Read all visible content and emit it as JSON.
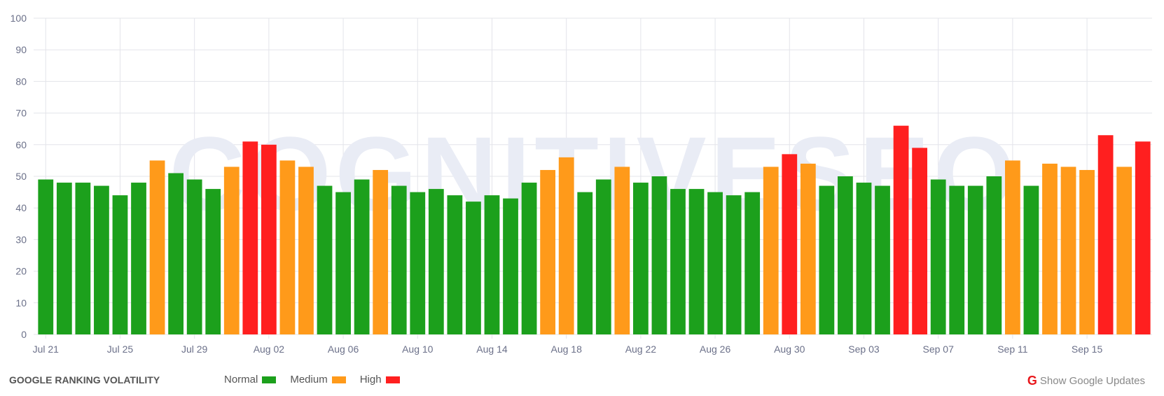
{
  "chart_data": {
    "type": "bar",
    "title": "GOOGLE RANKING VOLATILITY",
    "ylim": [
      0,
      100
    ],
    "yticks": [
      "0",
      "10",
      "20",
      "30",
      "40",
      "50",
      "60",
      "70",
      "80",
      "90",
      "100"
    ],
    "grid": true,
    "legend_placement": "bottom",
    "watermark": "COGNITIVESEO",
    "categories": [
      "Jul 21",
      "Jul 22",
      "Jul 23",
      "Jul 24",
      "Jul 25",
      "Jul 26",
      "Jul 27",
      "Jul 28",
      "Jul 29",
      "Jul 30",
      "Jul 31",
      "Aug 01",
      "Aug 02",
      "Aug 03",
      "Aug 04",
      "Aug 05",
      "Aug 06",
      "Aug 07",
      "Aug 08",
      "Aug 09",
      "Aug 10",
      "Aug 11",
      "Aug 12",
      "Aug 13",
      "Aug 14",
      "Aug 15",
      "Aug 16",
      "Aug 17",
      "Aug 18",
      "Aug 19",
      "Aug 20",
      "Aug 21",
      "Aug 22",
      "Aug 23",
      "Aug 24",
      "Aug 25",
      "Aug 26",
      "Aug 27",
      "Aug 28",
      "Aug 29",
      "Aug 30",
      "Aug 31",
      "Sep 01",
      "Sep 02",
      "Sep 03",
      "Sep 04",
      "Sep 05",
      "Sep 06",
      "Sep 07",
      "Sep 08",
      "Sep 09",
      "Sep 10",
      "Sep 11",
      "Sep 12",
      "Sep 13",
      "Sep 14",
      "Sep 15",
      "Sep 16",
      "Sep 17",
      "Sep 18"
    ],
    "xtick_labels": [
      "Jul 21",
      "Jul 25",
      "Jul 29",
      "Aug 02",
      "Aug 06",
      "Aug 10",
      "Aug 14",
      "Aug 18",
      "Aug 22",
      "Aug 26",
      "Aug 30",
      "Sep 03",
      "Sep 07",
      "Sep 11",
      "Sep 15"
    ],
    "values": [
      49,
      48,
      48,
      47,
      44,
      48,
      55,
      51,
      49,
      46,
      53,
      61,
      60,
      55,
      53,
      47,
      45,
      49,
      52,
      47,
      45,
      46,
      44,
      42,
      44,
      43,
      48,
      52,
      56,
      45,
      49,
      53,
      48,
      50,
      46,
      46,
      45,
      44,
      45,
      53,
      57,
      54,
      47,
      50,
      48,
      47,
      66,
      59,
      49,
      47,
      47,
      50,
      55,
      47,
      54,
      53,
      52,
      63,
      53,
      61
    ],
    "levels": [
      "Normal",
      "Normal",
      "Normal",
      "Normal",
      "Normal",
      "Normal",
      "Medium",
      "Normal",
      "Normal",
      "Normal",
      "Medium",
      "High",
      "High",
      "Medium",
      "Medium",
      "Normal",
      "Normal",
      "Normal",
      "Medium",
      "Normal",
      "Normal",
      "Normal",
      "Normal",
      "Normal",
      "Normal",
      "Normal",
      "Normal",
      "Medium",
      "Medium",
      "Normal",
      "Normal",
      "Medium",
      "Normal",
      "Normal",
      "Normal",
      "Normal",
      "Normal",
      "Normal",
      "Normal",
      "Medium",
      "High",
      "Medium",
      "Normal",
      "Normal",
      "Normal",
      "Normal",
      "High",
      "High",
      "Normal",
      "Normal",
      "Normal",
      "Normal",
      "Medium",
      "Normal",
      "Medium",
      "Medium",
      "Medium",
      "High",
      "Medium",
      "High"
    ],
    "legend": [
      {
        "name": "Normal",
        "color": "#1ca01c"
      },
      {
        "name": "Medium",
        "color": "#ff9a1a"
      },
      {
        "name": "High",
        "color": "#ff1f1f"
      }
    ]
  },
  "footer": {
    "show_updates_label": "Show Google Updates",
    "google_icon": "G"
  }
}
